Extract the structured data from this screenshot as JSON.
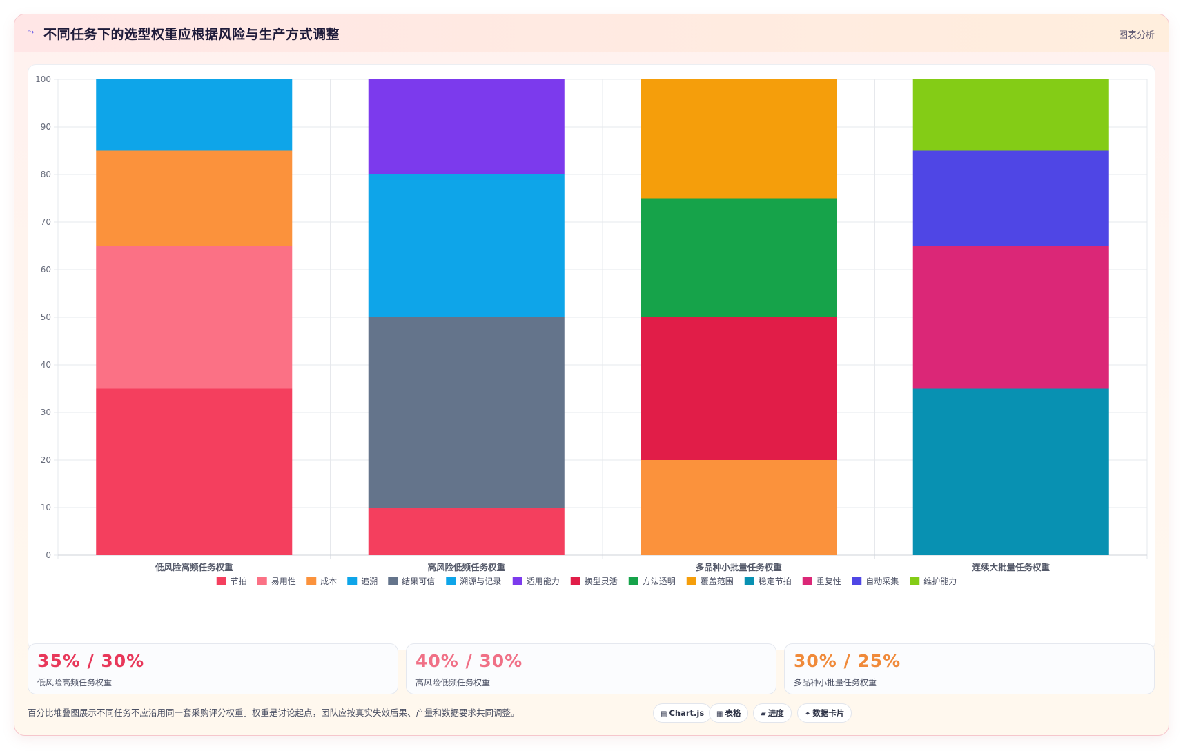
{
  "header": {
    "title_icon": "chart-trend-icon",
    "title": "不同任务下的选型权重应根据风险与生产方式调整",
    "link": "图表分析"
  },
  "chart_data": {
    "type": "bar",
    "stacked": true,
    "categories": [
      "低风险高频任务权重",
      "高风险低频任务权重",
      "多品种小批量任务权重",
      "连续大批量任务权重"
    ],
    "ylim": [
      0,
      100
    ],
    "yticks": [
      0,
      10,
      20,
      30,
      40,
      50,
      60,
      70,
      80,
      90,
      100
    ],
    "grid": true,
    "legend_position": "bottom",
    "series": [
      {
        "name": "节拍",
        "color": "#f43f5e",
        "values": [
          35,
          10,
          0,
          0
        ]
      },
      {
        "name": "易用性",
        "color": "#fb7185",
        "values": [
          30,
          0,
          0,
          0
        ]
      },
      {
        "name": "成本",
        "color": "#fb923c",
        "values": [
          20,
          0,
          20,
          0
        ]
      },
      {
        "name": "追溯",
        "color": "#0ea5e9",
        "values": [
          15,
          0,
          0,
          0
        ]
      },
      {
        "name": "结果可信",
        "color": "#64748b",
        "values": [
          0,
          40,
          0,
          0
        ]
      },
      {
        "name": "溯源与记录",
        "color": "#0ea5e9",
        "values": [
          0,
          30,
          0,
          0
        ]
      },
      {
        "name": "适用能力",
        "color": "#7c3aed",
        "values": [
          0,
          20,
          0,
          0
        ]
      },
      {
        "name": "换型灵活",
        "color": "#e11d48",
        "values": [
          0,
          0,
          30,
          0
        ]
      },
      {
        "name": "方法透明",
        "color": "#16a34a",
        "values": [
          0,
          0,
          25,
          0
        ]
      },
      {
        "name": "覆盖范围",
        "color": "#f59e0b",
        "values": [
          0,
          0,
          25,
          0
        ]
      },
      {
        "name": "稳定节拍",
        "color": "#0891b2",
        "values": [
          0,
          0,
          0,
          35
        ]
      },
      {
        "name": "重复性",
        "color": "#db2777",
        "values": [
          0,
          0,
          0,
          30
        ]
      },
      {
        "name": "自动采集",
        "color": "#4f46e5",
        "values": [
          0,
          0,
          0,
          20
        ]
      },
      {
        "name": "维护能力",
        "color": "#84cc16",
        "values": [
          0,
          0,
          0,
          15
        ]
      }
    ]
  },
  "stats": [
    {
      "value": "35% / 30%",
      "label": "低风险高频任务权重",
      "color": "#e8385a"
    },
    {
      "value": "40% / 30%",
      "label": "高风险低频任务权重",
      "color": "#f07086"
    },
    {
      "value": "30% / 25%",
      "label": "多品种小批量任务权重",
      "color": "#f08a3a"
    }
  ],
  "footer": {
    "note": "百分比堆叠图展示不同任务不应沿用同一套采购评分权重。权重是讨论起点，团队应按真实失效后果、产量和数据要求共同调整。",
    "badges": [
      {
        "icon": "chart-icon",
        "label": "Chart.js"
      },
      {
        "icon": "table-icon",
        "label": "表格"
      },
      {
        "icon": "progress-icon",
        "label": "进度"
      },
      {
        "icon": "sparkle-icon",
        "label": "数据卡片"
      }
    ]
  }
}
